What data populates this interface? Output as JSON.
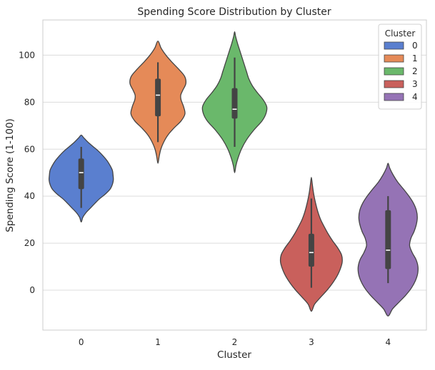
{
  "chart_data": {
    "type": "violin",
    "title": "Spending Score Distribution by Cluster",
    "xlabel": "Cluster",
    "ylabel": "Spending Score (1-100)",
    "categories": [
      "0",
      "1",
      "2",
      "3",
      "4"
    ],
    "ylim": [
      -17,
      115
    ],
    "yticks": [
      0,
      20,
      40,
      60,
      80,
      100
    ],
    "grid": true,
    "legend": {
      "title": "Cluster",
      "placement": "top-right",
      "entries": [
        "0",
        "1",
        "2",
        "3",
        "4"
      ]
    },
    "series": [
      {
        "name": "0",
        "color": "#5a7fcf",
        "violin_min": 29,
        "violin_max": 66,
        "whisker_low": 35,
        "q1": 43,
        "median": 50,
        "q3": 56,
        "whisker_high": 61,
        "density": [
          [
            29,
            0.0
          ],
          [
            31,
            0.05
          ],
          [
            33,
            0.15
          ],
          [
            35,
            0.29
          ],
          [
            37,
            0.43
          ],
          [
            39,
            0.58
          ],
          [
            41,
            0.76
          ],
          [
            43,
            0.9
          ],
          [
            45,
            0.97
          ],
          [
            47,
            1.0
          ],
          [
            49,
            0.99
          ],
          [
            51,
            0.97
          ],
          [
            53,
            0.9
          ],
          [
            55,
            0.81
          ],
          [
            57,
            0.69
          ],
          [
            59,
            0.55
          ],
          [
            61,
            0.38
          ],
          [
            63,
            0.21
          ],
          [
            65,
            0.07
          ],
          [
            66,
            0.0
          ]
        ]
      },
      {
        "name": "1",
        "color": "#e58a58",
        "violin_min": 54,
        "violin_max": 106,
        "whisker_low": 63,
        "q1": 74,
        "median": 83,
        "q3": 90,
        "whisker_high": 97,
        "density": [
          [
            54,
            0.0
          ],
          [
            57,
            0.04
          ],
          [
            60,
            0.09
          ],
          [
            63,
            0.18
          ],
          [
            66,
            0.31
          ],
          [
            69,
            0.5
          ],
          [
            72,
            0.72
          ],
          [
            75,
            0.84
          ],
          [
            78,
            0.8
          ],
          [
            81,
            0.72
          ],
          [
            83,
            0.71
          ],
          [
            85,
            0.77
          ],
          [
            88,
            0.87
          ],
          [
            91,
            0.83
          ],
          [
            94,
            0.65
          ],
          [
            97,
            0.44
          ],
          [
            100,
            0.25
          ],
          [
            103,
            0.1
          ],
          [
            106,
            0.0
          ]
        ]
      },
      {
        "name": "2",
        "color": "#6ab86b",
        "violin_min": 50,
        "violin_max": 110,
        "whisker_low": 61,
        "q1": 73,
        "median": 77,
        "q3": 86,
        "whisker_high": 99,
        "density": [
          [
            50,
            0.0
          ],
          [
            53,
            0.04
          ],
          [
            56,
            0.1
          ],
          [
            60,
            0.21
          ],
          [
            64,
            0.37
          ],
          [
            68,
            0.59
          ],
          [
            72,
            0.85
          ],
          [
            75,
            0.97
          ],
          [
            78,
            1.0
          ],
          [
            81,
            0.89
          ],
          [
            84,
            0.71
          ],
          [
            87,
            0.55
          ],
          [
            90,
            0.44
          ],
          [
            93,
            0.37
          ],
          [
            96,
            0.3
          ],
          [
            99,
            0.23
          ],
          [
            102,
            0.16
          ],
          [
            105,
            0.09
          ],
          [
            108,
            0.03
          ],
          [
            110,
            0.0
          ]
        ]
      },
      {
        "name": "3",
        "color": "#c9605c",
        "violin_min": -9,
        "violin_max": 48,
        "whisker_low": 1,
        "q1": 10,
        "median": 16,
        "q3": 24,
        "whisker_high": 39,
        "density": [
          [
            -9,
            0.0
          ],
          [
            -6,
            0.1
          ],
          [
            -3,
            0.29
          ],
          [
            0,
            0.49
          ],
          [
            3,
            0.66
          ],
          [
            6,
            0.8
          ],
          [
            9,
            0.9
          ],
          [
            12,
            0.96
          ],
          [
            15,
            0.94
          ],
          [
            18,
            0.82
          ],
          [
            21,
            0.66
          ],
          [
            24,
            0.52
          ],
          [
            27,
            0.4
          ],
          [
            30,
            0.29
          ],
          [
            33,
            0.21
          ],
          [
            36,
            0.15
          ],
          [
            39,
            0.1
          ],
          [
            42,
            0.06
          ],
          [
            45,
            0.03
          ],
          [
            48,
            0.0
          ]
        ]
      },
      {
        "name": "4",
        "color": "#9573b5",
        "violin_min": -11,
        "violin_max": 54,
        "whisker_low": 3,
        "q1": 9,
        "median": 17,
        "q3": 34,
        "whisker_high": 40,
        "density": [
          [
            -11,
            0.0
          ],
          [
            -8,
            0.14
          ],
          [
            -5,
            0.35
          ],
          [
            -2,
            0.56
          ],
          [
            1,
            0.73
          ],
          [
            4,
            0.85
          ],
          [
            7,
            0.92
          ],
          [
            10,
            0.93
          ],
          [
            13,
            0.87
          ],
          [
            16,
            0.75
          ],
          [
            19,
            0.67
          ],
          [
            22,
            0.71
          ],
          [
            25,
            0.81
          ],
          [
            28,
            0.88
          ],
          [
            31,
            0.91
          ],
          [
            34,
            0.88
          ],
          [
            37,
            0.79
          ],
          [
            40,
            0.65
          ],
          [
            43,
            0.48
          ],
          [
            46,
            0.3
          ],
          [
            49,
            0.16
          ],
          [
            52,
            0.05
          ],
          [
            54,
            0.0
          ]
        ]
      }
    ]
  }
}
